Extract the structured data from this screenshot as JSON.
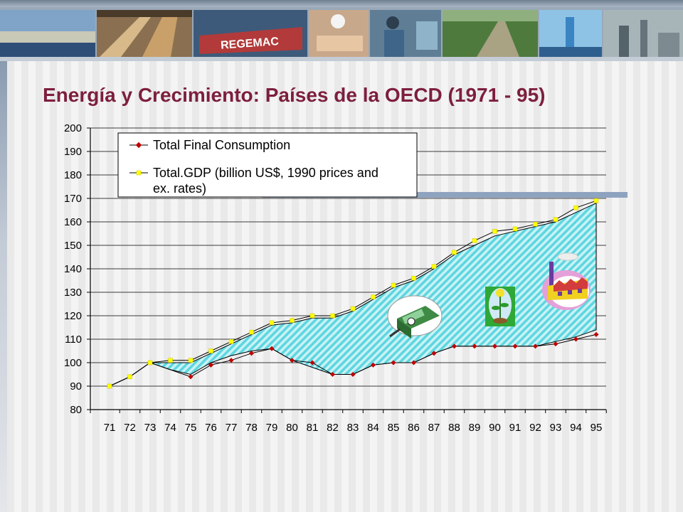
{
  "title": "Energía y Crecimiento: Países de la OECD (1971 - 95)",
  "colors": {
    "title": "#7d1f3c",
    "consumption_marker": "#c00000",
    "gdp_marker": "#ffff00",
    "fill_hatch": "#5ed6e0",
    "fill_bg": "#c8f2f5",
    "accent_bar": "#8ea3bf"
  },
  "banner": {
    "photos": [
      "coastal-landscape-photo",
      "lumber-factory-photo",
      "regemac-machine-photo",
      "worker-packing-photo",
      "technician-photo",
      "forest-road-photo",
      "wind-tower-photo",
      "industrial-plant-photo"
    ],
    "machine_text": "REGEMAC"
  },
  "clipart": [
    "money-machine-icon",
    "seedling-icon",
    "factory-icon"
  ],
  "chart_data": {
    "type": "line",
    "categories": [
      "71",
      "72",
      "73",
      "74",
      "75",
      "76",
      "77",
      "78",
      "79",
      "80",
      "81",
      "82",
      "83",
      "84",
      "85",
      "86",
      "87",
      "88",
      "89",
      "90",
      "91",
      "92",
      "93",
      "94",
      "95"
    ],
    "ylim": [
      80,
      200
    ],
    "yticks": [
      80,
      90,
      100,
      110,
      120,
      130,
      140,
      150,
      160,
      170,
      180,
      190,
      200
    ],
    "grid": true,
    "legend_position": "top-left",
    "series": [
      {
        "name": "Total Final Consumption",
        "marker_color": "#c00000",
        "values": [
          90,
          94,
          100,
          null,
          94,
          99,
          101,
          104,
          106,
          101,
          100,
          95,
          95,
          99,
          100,
          100,
          104,
          107,
          107,
          107,
          107,
          107,
          108,
          110,
          112
        ]
      },
      {
        "name": "Total.GDP (billion US$, 1990 prices and ex. rates)",
        "marker_color": "#ffff00",
        "values": [
          90,
          94,
          100,
          101,
          101,
          105,
          109,
          113,
          117,
          118,
          120,
          120,
          123,
          128,
          133,
          136,
          141,
          147,
          152,
          156,
          157,
          159,
          161,
          166,
          169
        ]
      }
    ],
    "shaded_band": {
      "description": "hatched area between the two series",
      "upper": [
        90,
        94,
        100,
        100,
        100,
        104,
        108,
        112,
        116,
        117,
        119,
        119,
        122,
        127,
        132,
        135,
        140,
        146,
        150,
        154,
        156,
        158,
        160,
        164,
        168
      ],
      "lower": [
        90,
        94,
        100,
        97,
        95,
        100,
        103,
        105,
        106,
        101,
        98,
        95,
        95,
        99,
        100,
        100,
        104,
        107,
        107,
        107,
        107,
        107,
        109,
        111,
        114
      ]
    }
  }
}
